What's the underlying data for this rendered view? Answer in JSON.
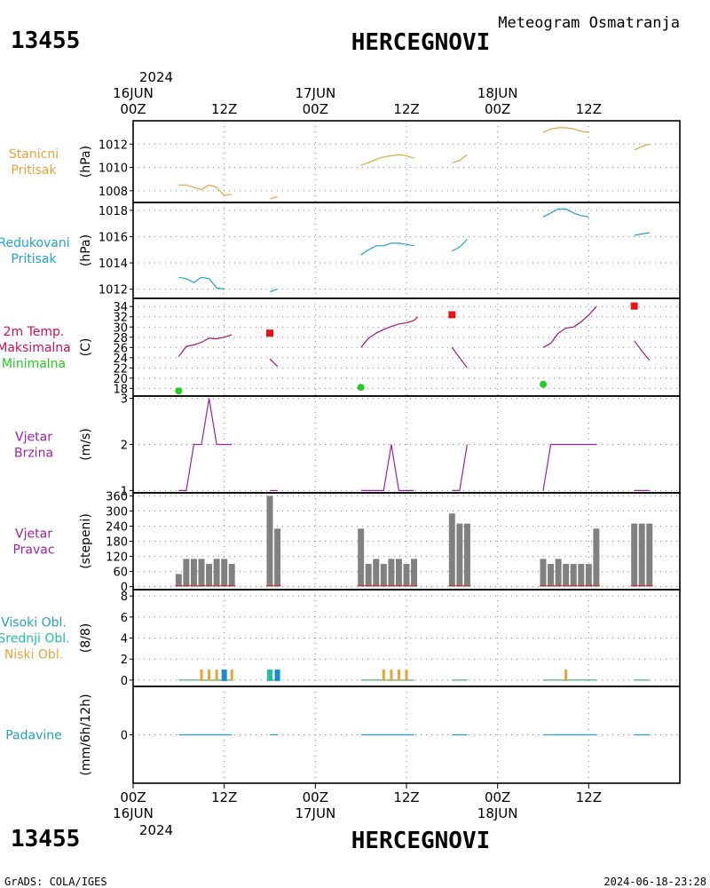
{
  "header": {
    "station_id": "13455",
    "station_name": "HERCEGNOVI",
    "subtitle": "Meteogram Osmatranja"
  },
  "footer": {
    "station_id": "13455",
    "station_name": "HERCEGNOVI",
    "credit": "GrADS: COLA/IGES",
    "timestamp": "2024-06-18-23:28"
  },
  "time_axis": {
    "year": "2024",
    "range_hours": [
      0,
      72
    ],
    "ticks": [
      {
        "hour": 0,
        "label": "00Z",
        "date": "16JUN"
      },
      {
        "hour": 12,
        "label": "12Z",
        "date": ""
      },
      {
        "hour": 24,
        "label": "00Z",
        "date": "17JUN"
      },
      {
        "hour": 36,
        "label": "12Z",
        "date": ""
      },
      {
        "hour": 48,
        "label": "00Z",
        "date": "18JUN"
      },
      {
        "hour": 60,
        "label": "12Z",
        "date": ""
      }
    ]
  },
  "chart_data": [
    {
      "type": "line",
      "label_lines": [
        "Stanicni",
        "Pritisak"
      ],
      "ylabel": "(hPa)",
      "label_color": "#e6a33c",
      "ylim": [
        1007,
        1014
      ],
      "yticks": [
        1008,
        1010,
        1012
      ],
      "series": [
        {
          "color": "#e6a33c",
          "segments": [
            [
              [
                6,
                1008.5
              ],
              [
                7,
                1008.5
              ],
              [
                8,
                1008.3
              ],
              [
                9,
                1008.1
              ],
              [
                10,
                1008.5
              ],
              [
                11,
                1008.3
              ],
              [
                12,
                1007.6
              ],
              [
                13,
                1007.7
              ]
            ],
            [
              [
                18,
                1007.3
              ],
              [
                19,
                1007.5
              ]
            ],
            [
              [
                30,
                1010.2
              ],
              [
                31,
                1010.4
              ],
              [
                32,
                1010.7
              ],
              [
                33,
                1010.9
              ],
              [
                34,
                1011.0
              ],
              [
                35,
                1011.1
              ],
              [
                36,
                1011.0
              ],
              [
                37,
                1010.8
              ]
            ],
            [
              [
                42,
                1010.4
              ],
              [
                43,
                1010.6
              ],
              [
                44,
                1011.1
              ]
            ],
            [
              [
                54,
                1013.0
              ],
              [
                55,
                1013.3
              ],
              [
                56,
                1013.4
              ],
              [
                57,
                1013.4
              ],
              [
                58,
                1013.3
              ],
              [
                59,
                1013.1
              ],
              [
                60,
                1013.0
              ]
            ],
            [
              [
                66,
                1011.5
              ],
              [
                67,
                1011.8
              ],
              [
                68,
                1012.0
              ]
            ]
          ]
        }
      ]
    },
    {
      "type": "line",
      "label_lines": [
        "Redukovani",
        "Pritisak"
      ],
      "ylabel": "(hPa)",
      "label_color": "#22a0d0",
      "ylim": [
        1011.3,
        1018.6
      ],
      "yticks": [
        1012,
        1014,
        1016,
        1018
      ],
      "series": [
        {
          "color": "#22a0d0",
          "segments": [
            [
              [
                6,
                1012.9
              ],
              [
                7,
                1012.8
              ],
              [
                8,
                1012.5
              ],
              [
                9,
                1012.9
              ],
              [
                10,
                1012.8
              ],
              [
                11,
                1012.1
              ],
              [
                12,
                1012.0
              ]
            ],
            [
              [
                18,
                1011.8
              ],
              [
                19,
                1012.0
              ]
            ],
            [
              [
                30,
                1014.6
              ],
              [
                31,
                1015.0
              ],
              [
                32,
                1015.3
              ],
              [
                33,
                1015.3
              ],
              [
                34,
                1015.5
              ],
              [
                35,
                1015.5
              ],
              [
                36,
                1015.4
              ],
              [
                37,
                1015.3
              ]
            ],
            [
              [
                42,
                1014.9
              ],
              [
                43,
                1015.2
              ],
              [
                44,
                1015.8
              ]
            ],
            [
              [
                54,
                1017.5
              ],
              [
                55,
                1017.8
              ],
              [
                56,
                1018.1
              ],
              [
                57,
                1018.1
              ],
              [
                58,
                1017.8
              ],
              [
                59,
                1017.6
              ],
              [
                60,
                1017.5
              ]
            ],
            [
              [
                66,
                1016.1
              ],
              [
                67,
                1016.2
              ],
              [
                68,
                1016.3
              ]
            ]
          ]
        }
      ]
    },
    {
      "type": "line",
      "label_lines": [
        "2m Temp.",
        "Maksimalna",
        "Minimalna"
      ],
      "label_colors": [
        "#cc1155",
        "#cc1155",
        "#22cc22"
      ],
      "ylabel": "(C)",
      "ylim": [
        16.5,
        35.6
      ],
      "yticks": [
        18,
        20,
        22,
        24,
        26,
        28,
        30,
        32,
        34
      ],
      "series": [
        {
          "color": "#aa1177",
          "segments": [
            [
              [
                6,
                24.2
              ],
              [
                7,
                26.2
              ],
              [
                8,
                26.5
              ],
              [
                9,
                27.0
              ],
              [
                10,
                27.8
              ],
              [
                11,
                27.7
              ],
              [
                12,
                28.0
              ],
              [
                13,
                28.5
              ]
            ],
            [
              [
                18,
                23.8
              ],
              [
                19,
                22.3
              ]
            ],
            [
              [
                30,
                26.0
              ],
              [
                31,
                27.8
              ],
              [
                32,
                28.8
              ],
              [
                33,
                29.5
              ],
              [
                34,
                30.1
              ],
              [
                35,
                30.6
              ],
              [
                36,
                30.8
              ],
              [
                37,
                31.3
              ],
              [
                37.5,
                32.0
              ]
            ],
            [
              [
                42,
                26.0
              ],
              [
                43,
                24.0
              ],
              [
                44,
                22.0
              ]
            ],
            [
              [
                54,
                26.0
              ],
              [
                55,
                26.8
              ],
              [
                56,
                28.8
              ],
              [
                57,
                29.8
              ],
              [
                58,
                30.0
              ],
              [
                59,
                31.0
              ],
              [
                60,
                32.3
              ],
              [
                61,
                34.0
              ]
            ],
            [
              [
                66,
                27.3
              ],
              [
                67,
                25.3
              ],
              [
                68,
                23.5
              ]
            ]
          ]
        }
      ],
      "maxima": [
        {
          "hour": 18,
          "value": 28.8
        },
        {
          "hour": 42,
          "value": 32.4
        },
        {
          "hour": 66,
          "value": 34.1
        }
      ],
      "minima": [
        {
          "hour": 6,
          "value": 17.5
        },
        {
          "hour": 30,
          "value": 18.2
        },
        {
          "hour": 54,
          "value": 18.8
        }
      ],
      "max_color": "#ee1111",
      "min_color": "#22cc22"
    },
    {
      "type": "line",
      "label_lines": [
        "Vjetar",
        "Brzina"
      ],
      "ylabel": "(m/s)",
      "label_color": "#9922aa",
      "ylim": [
        0.95,
        3.05
      ],
      "yticks": [
        1,
        2,
        3
      ],
      "series": [
        {
          "color": "#9922aa",
          "segments": [
            [
              [
                6,
                1
              ],
              [
                7,
                1
              ],
              [
                8,
                2
              ],
              [
                9,
                2
              ],
              [
                10,
                3
              ],
              [
                11,
                2
              ],
              [
                12,
                2
              ],
              [
                13,
                2
              ]
            ],
            [
              [
                18,
                1
              ],
              [
                19,
                1
              ]
            ],
            [
              [
                30,
                1
              ],
              [
                31,
                1
              ],
              [
                32,
                1
              ],
              [
                33,
                1
              ],
              [
                34,
                2
              ],
              [
                35,
                1
              ],
              [
                36,
                1
              ],
              [
                37,
                1
              ]
            ],
            [
              [
                42,
                1
              ],
              [
                43,
                1
              ],
              [
                44,
                2
              ]
            ],
            [
              [
                54,
                1
              ],
              [
                55,
                2
              ],
              [
                56,
                2
              ],
              [
                57,
                2
              ],
              [
                58,
                2
              ],
              [
                59,
                2
              ],
              [
                60,
                2
              ],
              [
                61,
                2
              ]
            ],
            [
              [
                66,
                1
              ],
              [
                67,
                1
              ],
              [
                68,
                1
              ]
            ]
          ]
        }
      ]
    },
    {
      "type": "bar",
      "label_lines": [
        "Vjetar",
        "Pravac"
      ],
      "ylabel": "(stepeni)",
      "label_color": "#9922aa",
      "ylim": [
        -12,
        372
      ],
      "yticks": [
        0,
        60,
        120,
        180,
        240,
        300,
        360
      ],
      "bar_color": "#808080",
      "hours": [
        6,
        7,
        8,
        9,
        10,
        11,
        12,
        13,
        18,
        19,
        30,
        31,
        32,
        33,
        34,
        35,
        36,
        37,
        42,
        43,
        44,
        54,
        55,
        56,
        57,
        58,
        59,
        60,
        61,
        66,
        67,
        68
      ],
      "values": [
        50,
        110,
        110,
        110,
        90,
        110,
        110,
        90,
        360,
        230,
        230,
        90,
        110,
        90,
        110,
        110,
        90,
        110,
        290,
        250,
        250,
        110,
        90,
        110,
        90,
        90,
        90,
        90,
        230,
        250,
        250,
        250
      ],
      "baseline_color": "#cc3333"
    },
    {
      "type": "bar",
      "label_lines": [
        "Visoki Obl.",
        "Srednji Obl.",
        "Niski Obl."
      ],
      "label_colors": [
        "#22a0c0",
        "#22c0a0",
        "#e6a33c"
      ],
      "ylabel": "(8/8)",
      "ylim": [
        -0.6,
        8.6
      ],
      "yticks": [
        0,
        2,
        4,
        6,
        8
      ],
      "series": [
        {
          "name": "Niski Obl.",
          "color": "#e6a33c",
          "points": [
            [
              9,
              1
            ],
            [
              10,
              1
            ],
            [
              11,
              1
            ],
            [
              12,
              1
            ],
            [
              13,
              1
            ],
            [
              33,
              1
            ],
            [
              34,
              1
            ],
            [
              35,
              1
            ],
            [
              36,
              1
            ],
            [
              57,
              1
            ]
          ]
        },
        {
          "name": "Srednji Obl.",
          "color": "#22c0a0",
          "points": [
            [
              18,
              1
            ]
          ]
        },
        {
          "name": "Visoki Obl.",
          "color": "#1a8ad0",
          "points": [
            [
              12,
              1
            ],
            [
              19,
              1
            ]
          ]
        }
      ]
    },
    {
      "type": "line",
      "label_lines": [
        "Padavine"
      ],
      "ylabel": "(mm/6h/12h)",
      "label_color": "#22a0c0",
      "ylim": [
        -5,
        5
      ],
      "yticks": [
        0
      ],
      "series": [
        {
          "color": "#22a0c0",
          "segments": [
            [
              [
                6,
                0
              ],
              [
                13,
                0
              ]
            ],
            [
              [
                18,
                0
              ],
              [
                19,
                0
              ]
            ],
            [
              [
                30,
                0
              ],
              [
                37,
                0
              ]
            ],
            [
              [
                42,
                0
              ],
              [
                44,
                0
              ]
            ],
            [
              [
                54,
                0
              ],
              [
                61,
                0
              ]
            ],
            [
              [
                66,
                0
              ],
              [
                68,
                0
              ]
            ]
          ]
        }
      ]
    }
  ]
}
